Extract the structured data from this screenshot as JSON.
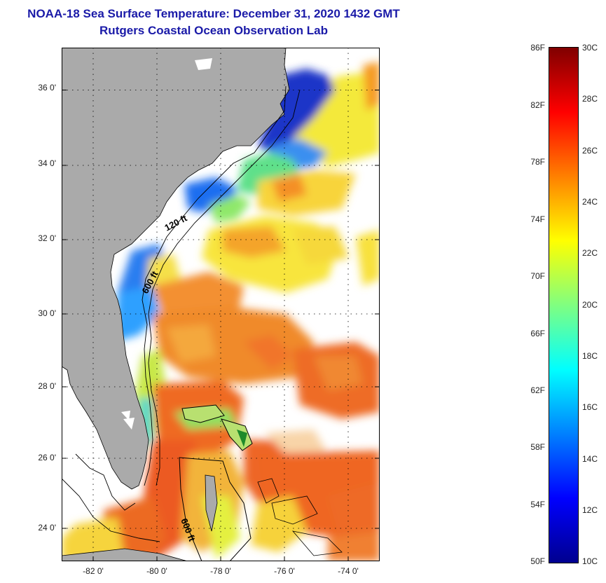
{
  "title": "NOAA-18 Sea Surface Temperature:  December 31, 2020 1432 GMT",
  "subtitle": "Rutgers Coastal Ocean Observation Lab",
  "map": {
    "lat_labels": [
      "36 0'",
      "34 0'",
      "32 0'",
      "30 0'",
      "28 0'",
      "26 0'",
      "24 0'"
    ],
    "lat_values": [
      36,
      34,
      32,
      30,
      28,
      26,
      24
    ],
    "lon_labels": [
      "-82 0'",
      "-80 0'",
      "-78 0'",
      "-76 0'",
      "-74 0'"
    ],
    "lon_values": [
      -82,
      -80,
      -78,
      -76,
      -74
    ],
    "lat_range": [
      23.0,
      37.1
    ],
    "lon_range": [
      -83.0,
      -73.0
    ],
    "contour_labels": [
      "120 ft",
      "600 ft",
      "600 ft"
    ],
    "colors": {
      "land": "#aaaaaa",
      "cloud": "#ffffff",
      "grid": "#000000"
    }
  },
  "colorbar": {
    "f_labels": [
      "86F",
      "82F",
      "78F",
      "74F",
      "70F",
      "66F",
      "62F",
      "58F",
      "54F",
      "50F"
    ],
    "f_values": [
      86,
      82,
      78,
      74,
      70,
      66,
      62,
      58,
      54,
      50
    ],
    "c_labels": [
      "30C",
      "28C",
      "26C",
      "24C",
      "22C",
      "20C",
      "18C",
      "16C",
      "14C",
      "12C",
      "10C"
    ],
    "c_values": [
      30,
      28,
      26,
      24,
      22,
      20,
      18,
      16,
      14,
      12,
      10
    ],
    "range_c": [
      10,
      30
    ],
    "colors": [
      "#00008f",
      "#0000ff",
      "#0080ff",
      "#00ffff",
      "#80ff80",
      "#ffff00",
      "#ff8000",
      "#ff0000",
      "#800000"
    ]
  }
}
